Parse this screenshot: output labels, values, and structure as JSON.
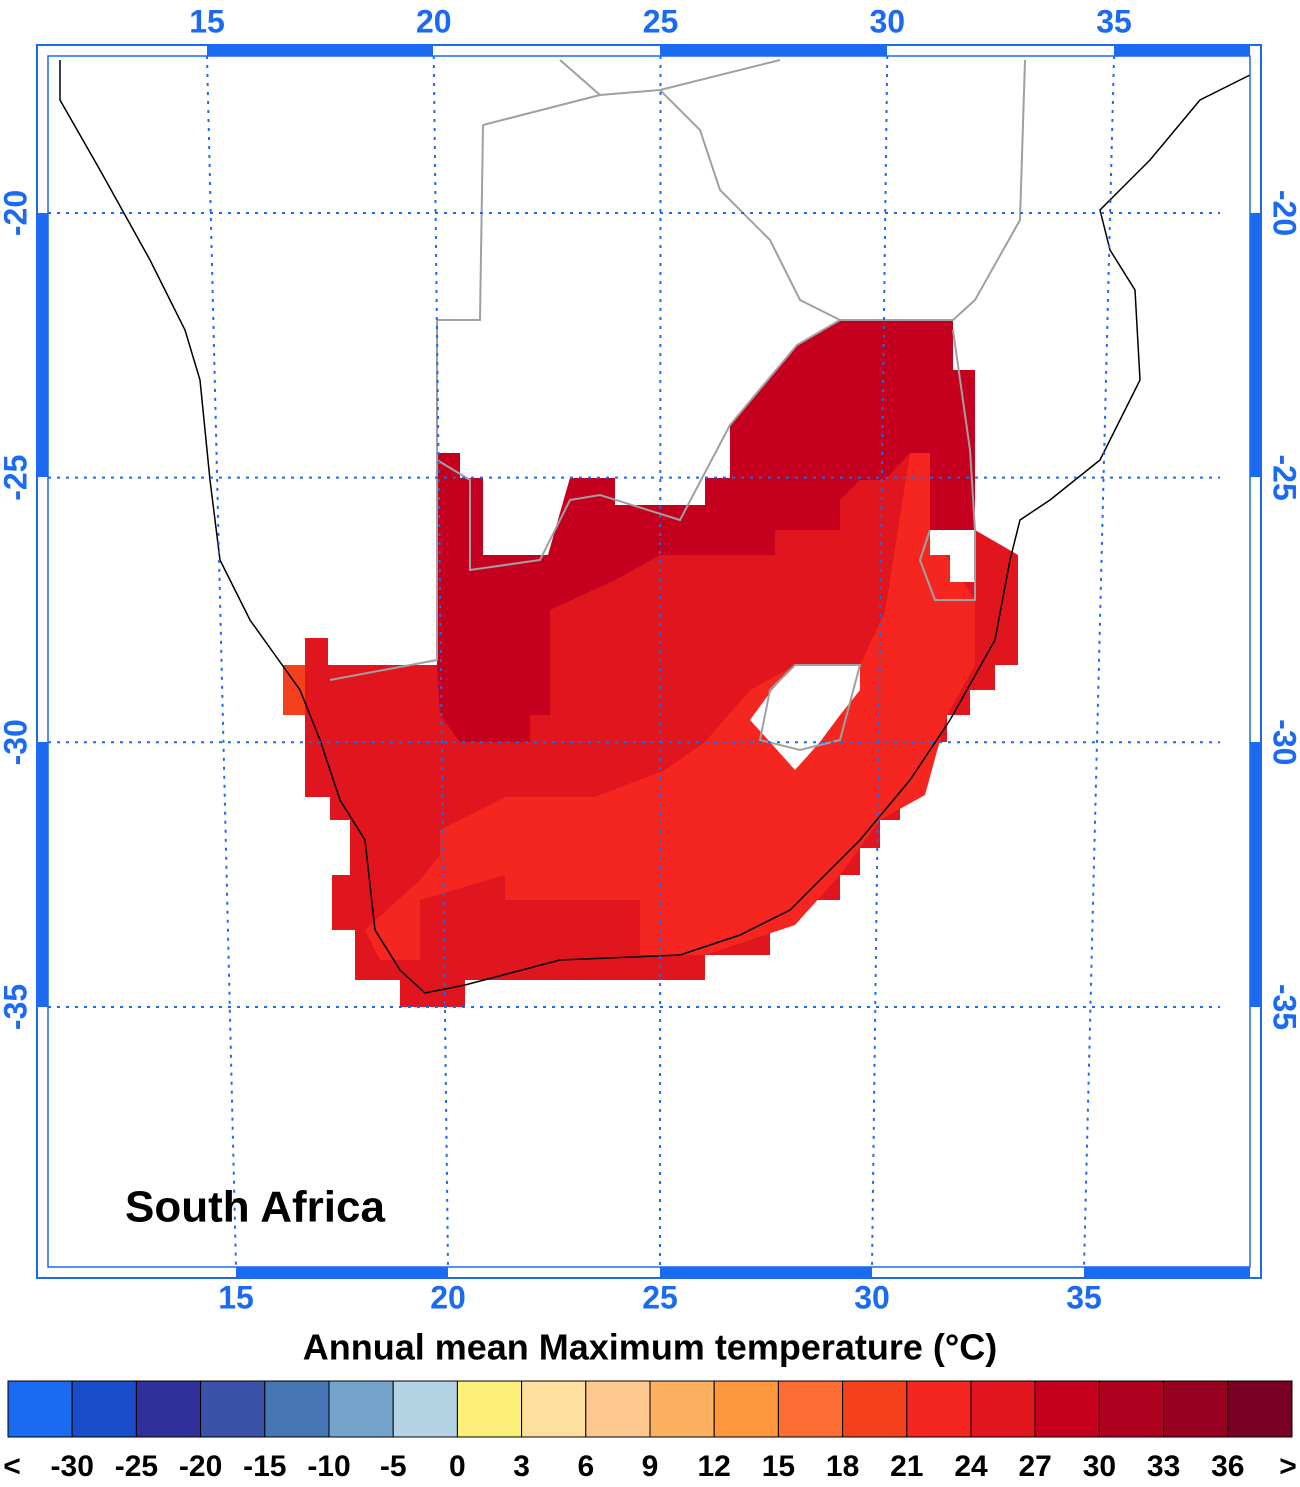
{
  "map": {
    "title": "South Africa",
    "lon_ticks_top": [
      15,
      20,
      25,
      30,
      35
    ],
    "lon_ticks_bottom": [
      15,
      20,
      25,
      30,
      35
    ],
    "lat_ticks_left": [
      -20,
      -25,
      -30,
      -35
    ],
    "lat_ticks_right": [
      -20,
      -25,
      -30,
      -35
    ]
  },
  "colorbar": {
    "title": "Annual mean Maximum temperature (°C)",
    "colors": [
      "#1a6af2",
      "#1a4dcc",
      "#30309a",
      "#3a52a8",
      "#4575b4",
      "#74a3cc",
      "#b4d4e6",
      "#fdf07a",
      "#fde09e",
      "#fdc98f",
      "#fdb05f",
      "#fd963c",
      "#fc6c33",
      "#f5401e",
      "#f52620",
      "#e0151e",
      "#c4001e",
      "#b00020",
      "#980020",
      "#7a0026"
    ],
    "labels": [
      "<",
      -30,
      -25,
      -20,
      -15,
      -10,
      -5,
      0,
      3,
      6,
      9,
      12,
      15,
      18,
      21,
      24,
      27,
      30,
      33,
      36,
      ">"
    ]
  }
}
